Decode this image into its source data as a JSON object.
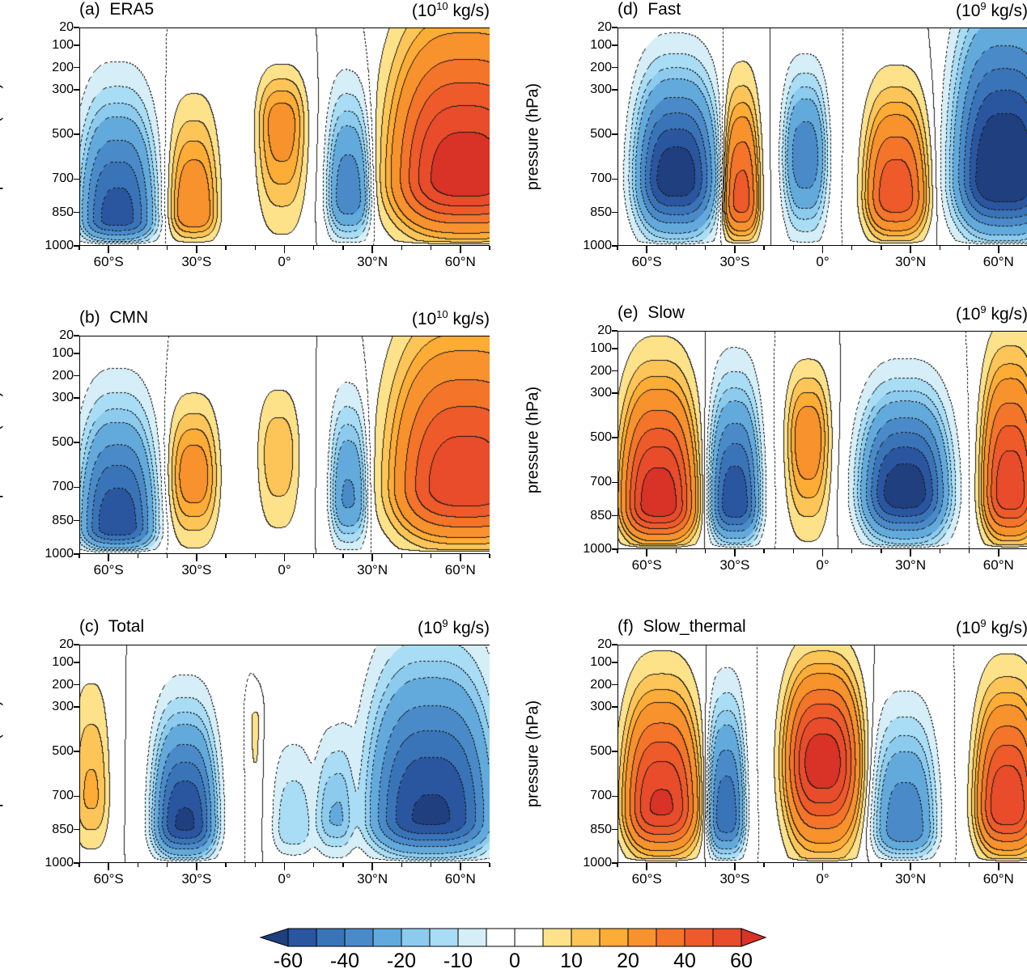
{
  "chart_data": [
    {
      "id": "a",
      "type": "contour",
      "label": "(a)",
      "title": "ERA5",
      "units": {
        "base": "10",
        "exponent": "10",
        "unit": "kg/s"
      },
      "ylabel": "pressure (hPa)",
      "xlim": [
        -70,
        70
      ],
      "ylim": [
        1000,
        20
      ],
      "cells": [
        {
          "lat": -57,
          "width": 12,
          "peak": -55,
          "p_peak": 880,
          "p_top": 150
        },
        {
          "lat": -31,
          "width": 8,
          "peak": 28,
          "p_peak": 850,
          "p_top": 200
        },
        {
          "lat": -1,
          "width": 8,
          "peak": 24,
          "p_peak": 450,
          "p_top": 110
        },
        {
          "lat": 22,
          "width": 7,
          "peak": -38,
          "p_peak": 780,
          "p_top": 130
        },
        {
          "lat": 62,
          "width": 24,
          "peak": 68,
          "p_peak": 700,
          "p_top": -250
        }
      ]
    },
    {
      "id": "b",
      "type": "contour",
      "label": "(b)",
      "title": "CMN",
      "units": {
        "base": "10",
        "exponent": "10",
        "unit": "kg/s"
      },
      "ylabel": "pressure (hPa)",
      "xlim": [
        -70,
        70
      ],
      "ylim": [
        1000,
        20
      ],
      "cells": [
        {
          "lat": -57,
          "width": 12,
          "peak": -58,
          "p_peak": 880,
          "p_top": 150
        },
        {
          "lat": -31,
          "width": 8,
          "peak": 25,
          "p_peak": 650,
          "p_top": 180
        },
        {
          "lat": -2,
          "width": 7,
          "peak": 14,
          "p_peak": 550,
          "p_top": 100
        },
        {
          "lat": 22,
          "width": 6,
          "peak": -32,
          "p_peak": 750,
          "p_top": 130
        },
        {
          "lat": 62,
          "width": 24,
          "peak": 58,
          "p_peak": 700,
          "p_top": -250
        }
      ]
    },
    {
      "id": "c",
      "type": "contour",
      "label": "(c)",
      "title": "Total",
      "units": {
        "base": "10",
        "exponent": "9",
        "unit": "kg/s"
      },
      "ylabel": "pressure (hPa)",
      "xlim": [
        -70,
        70
      ],
      "ylim": [
        1000,
        20
      ],
      "cells": [
        {
          "lat": -66,
          "width": 6,
          "peak": 16,
          "p_peak": 700,
          "p_top": -50
        },
        {
          "lat": -34,
          "width": 10,
          "peak": -62,
          "p_peak": 830,
          "p_top": 150
        },
        {
          "lat": -10,
          "width": 2,
          "peak": 6,
          "p_peak": 350,
          "p_top": 250
        },
        {
          "lat": 3,
          "width": 7,
          "peak": -14,
          "p_peak": 850,
          "p_top": 250
        },
        {
          "lat": 17,
          "width": 6,
          "peak": -20,
          "p_peak": 800,
          "p_top": 250
        },
        {
          "lat": 50,
          "width": 20,
          "peak": -62,
          "p_peak": 800,
          "p_top": -150
        }
      ]
    },
    {
      "id": "d",
      "type": "contour",
      "label": "(d)",
      "title": "Fast",
      "units": {
        "base": "10",
        "exponent": "9",
        "unit": "kg/s"
      },
      "ylabel": "pressure (hPa)",
      "xlim": [
        -70,
        70
      ],
      "ylim": [
        1000,
        20
      ],
      "cells": [
        {
          "lat": -50,
          "width": 13,
          "peak": -68,
          "p_peak": 700,
          "p_top": 50
        },
        {
          "lat": -28,
          "width": 6,
          "peak": 45,
          "p_peak": 800,
          "p_top": 120
        },
        {
          "lat": -6,
          "width": 7,
          "peak": -38,
          "p_peak": 600,
          "p_top": 80
        },
        {
          "lat": 25,
          "width": 10,
          "peak": 48,
          "p_peak": 780,
          "p_top": 150
        },
        {
          "lat": 62,
          "width": 16,
          "peak": -75,
          "p_peak": 700,
          "p_top": -300
        }
      ]
    },
    {
      "id": "e",
      "type": "contour",
      "label": "(e)",
      "title": "Slow",
      "units": {
        "base": "10",
        "exponent": "9",
        "unit": "kg/s"
      },
      "ylabel": "pressure (hPa)",
      "xlim": [
        -70,
        70
      ],
      "ylim": [
        1000,
        20
      ],
      "cells": [
        {
          "lat": -56,
          "width": 12,
          "peak": 68,
          "p_peak": 800,
          "p_top": 50
        },
        {
          "lat": -30,
          "width": 8,
          "peak": -58,
          "p_peak": 800,
          "p_top": 80
        },
        {
          "lat": -5,
          "width": 7,
          "peak": 26,
          "p_peak": 500,
          "p_top": 60
        },
        {
          "lat": 28,
          "width": 14,
          "peak": -68,
          "p_peak": 750,
          "p_top": 150
        },
        {
          "lat": 64,
          "width": 9,
          "peak": 58,
          "p_peak": 750,
          "p_top": -50
        }
      ]
    },
    {
      "id": "f",
      "type": "contour",
      "label": "(f)",
      "title": "Slow_thermal",
      "units": {
        "base": "10",
        "exponent": "9",
        "unit": "kg/s"
      },
      "ylabel": "pressure (hPa)",
      "xlim": [
        -70,
        70
      ],
      "ylim": [
        1000,
        20
      ],
      "cells": [
        {
          "lat": -55,
          "width": 12,
          "peak": 62,
          "p_peak": 750,
          "p_top": 40
        },
        {
          "lat": -33,
          "width": 6,
          "peak": -48,
          "p_peak": 800,
          "p_top": 80
        },
        {
          "lat": 0,
          "width": 12,
          "peak": 68,
          "p_peak": 550,
          "p_top": -30
        },
        {
          "lat": 28,
          "width": 10,
          "peak": -38,
          "p_peak": 850,
          "p_top": 150
        },
        {
          "lat": 63,
          "width": 10,
          "peak": 60,
          "p_peak": 750,
          "p_top": 50
        }
      ]
    }
  ],
  "axes": {
    "yticks": [
      "20",
      "100",
      "200",
      "300",
      "500",
      "700",
      "850",
      "1000"
    ],
    "ytick_values": [
      20,
      100,
      200,
      300,
      500,
      700,
      850,
      1000
    ],
    "xticks": [
      "60°S",
      "30°S",
      "0°",
      "30°N",
      "60°N"
    ],
    "xtick_values": [
      -60,
      -30,
      0,
      30,
      60
    ]
  },
  "colorbar": {
    "levels": [
      -60,
      -50,
      -40,
      -30,
      -20,
      -15,
      -10,
      -5,
      0,
      5,
      10,
      15,
      20,
      30,
      40,
      50,
      60
    ],
    "labels": [
      "-60",
      "-40",
      "-20",
      "-10",
      "0",
      "10",
      "20",
      "40",
      "60"
    ],
    "colors": [
      "#1f3f7f",
      "#2a56a0",
      "#3a74b8",
      "#4a8ac8",
      "#63aadc",
      "#8ccbee",
      "#a8ddf5",
      "#d5eef8",
      "#ffffff",
      "#ffffff",
      "#fde28a",
      "#fdc558",
      "#fdac35",
      "#f8922c",
      "#f4742a",
      "#ee5a2a",
      "#e84c2b",
      "#d93227"
    ]
  }
}
